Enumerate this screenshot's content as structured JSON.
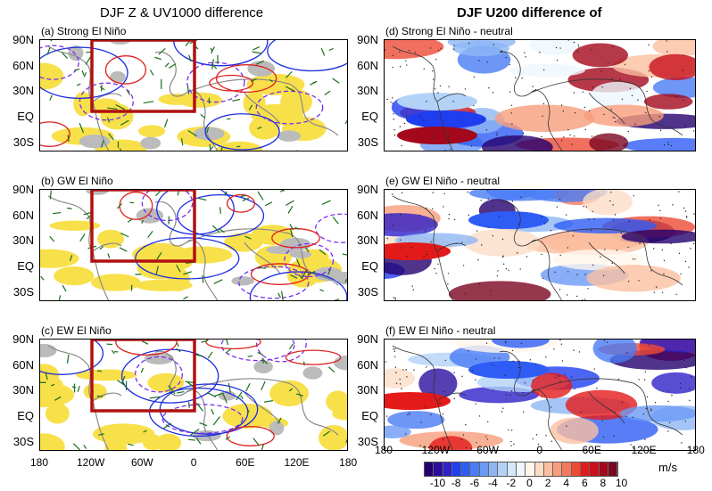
{
  "left_title": "DJF Z & UV1000 difference",
  "right_title": "DJF U200 difference of",
  "left_panels": [
    {
      "label": "(a) Strong El Niño"
    },
    {
      "label": "(b) GW El Niño"
    },
    {
      "label": "(c) EW El Niño"
    }
  ],
  "right_panels": [
    {
      "label": "(d) Strong El Niño - neutral"
    },
    {
      "label": "(e) GW El Niño - neutral"
    },
    {
      "label": "(f) EW El Niño - neutral"
    }
  ],
  "lat_ticks": [
    "90N",
    "60N",
    "30N",
    "EQ",
    "30S"
  ],
  "lon_ticks": [
    "180",
    "120W",
    "60W",
    "0",
    "60E",
    "120E",
    "180"
  ],
  "colorbar": {
    "unit": "m/s",
    "labels": [
      "-10",
      "-8",
      "-6",
      "-4",
      "-2",
      "0",
      "2",
      "4",
      "6",
      "8",
      "10"
    ],
    "colors": [
      "#24006e",
      "#2a0f9f",
      "#2e21c8",
      "#1f3ef0",
      "#2f5cf5",
      "#4a7cf5",
      "#6b9af5",
      "#8eb6f5",
      "#b3d2f8",
      "#d4e8fb",
      "#eef6fe",
      "#fff6ec",
      "#fddcc5",
      "#fbbfa0",
      "#f89d7c",
      "#f37a5c",
      "#ee4b36",
      "#e41a1a",
      "#c8101c",
      "#a3081c",
      "#7a0620"
    ]
  },
  "colors": {
    "positive_contour": "#e02020",
    "negative_contour": "#7a2cf0",
    "zero_contour": "#1a2ce0",
    "shading": "#f8e04a",
    "vectors": "#1a6e1a",
    "box": "#b01010"
  }
}
